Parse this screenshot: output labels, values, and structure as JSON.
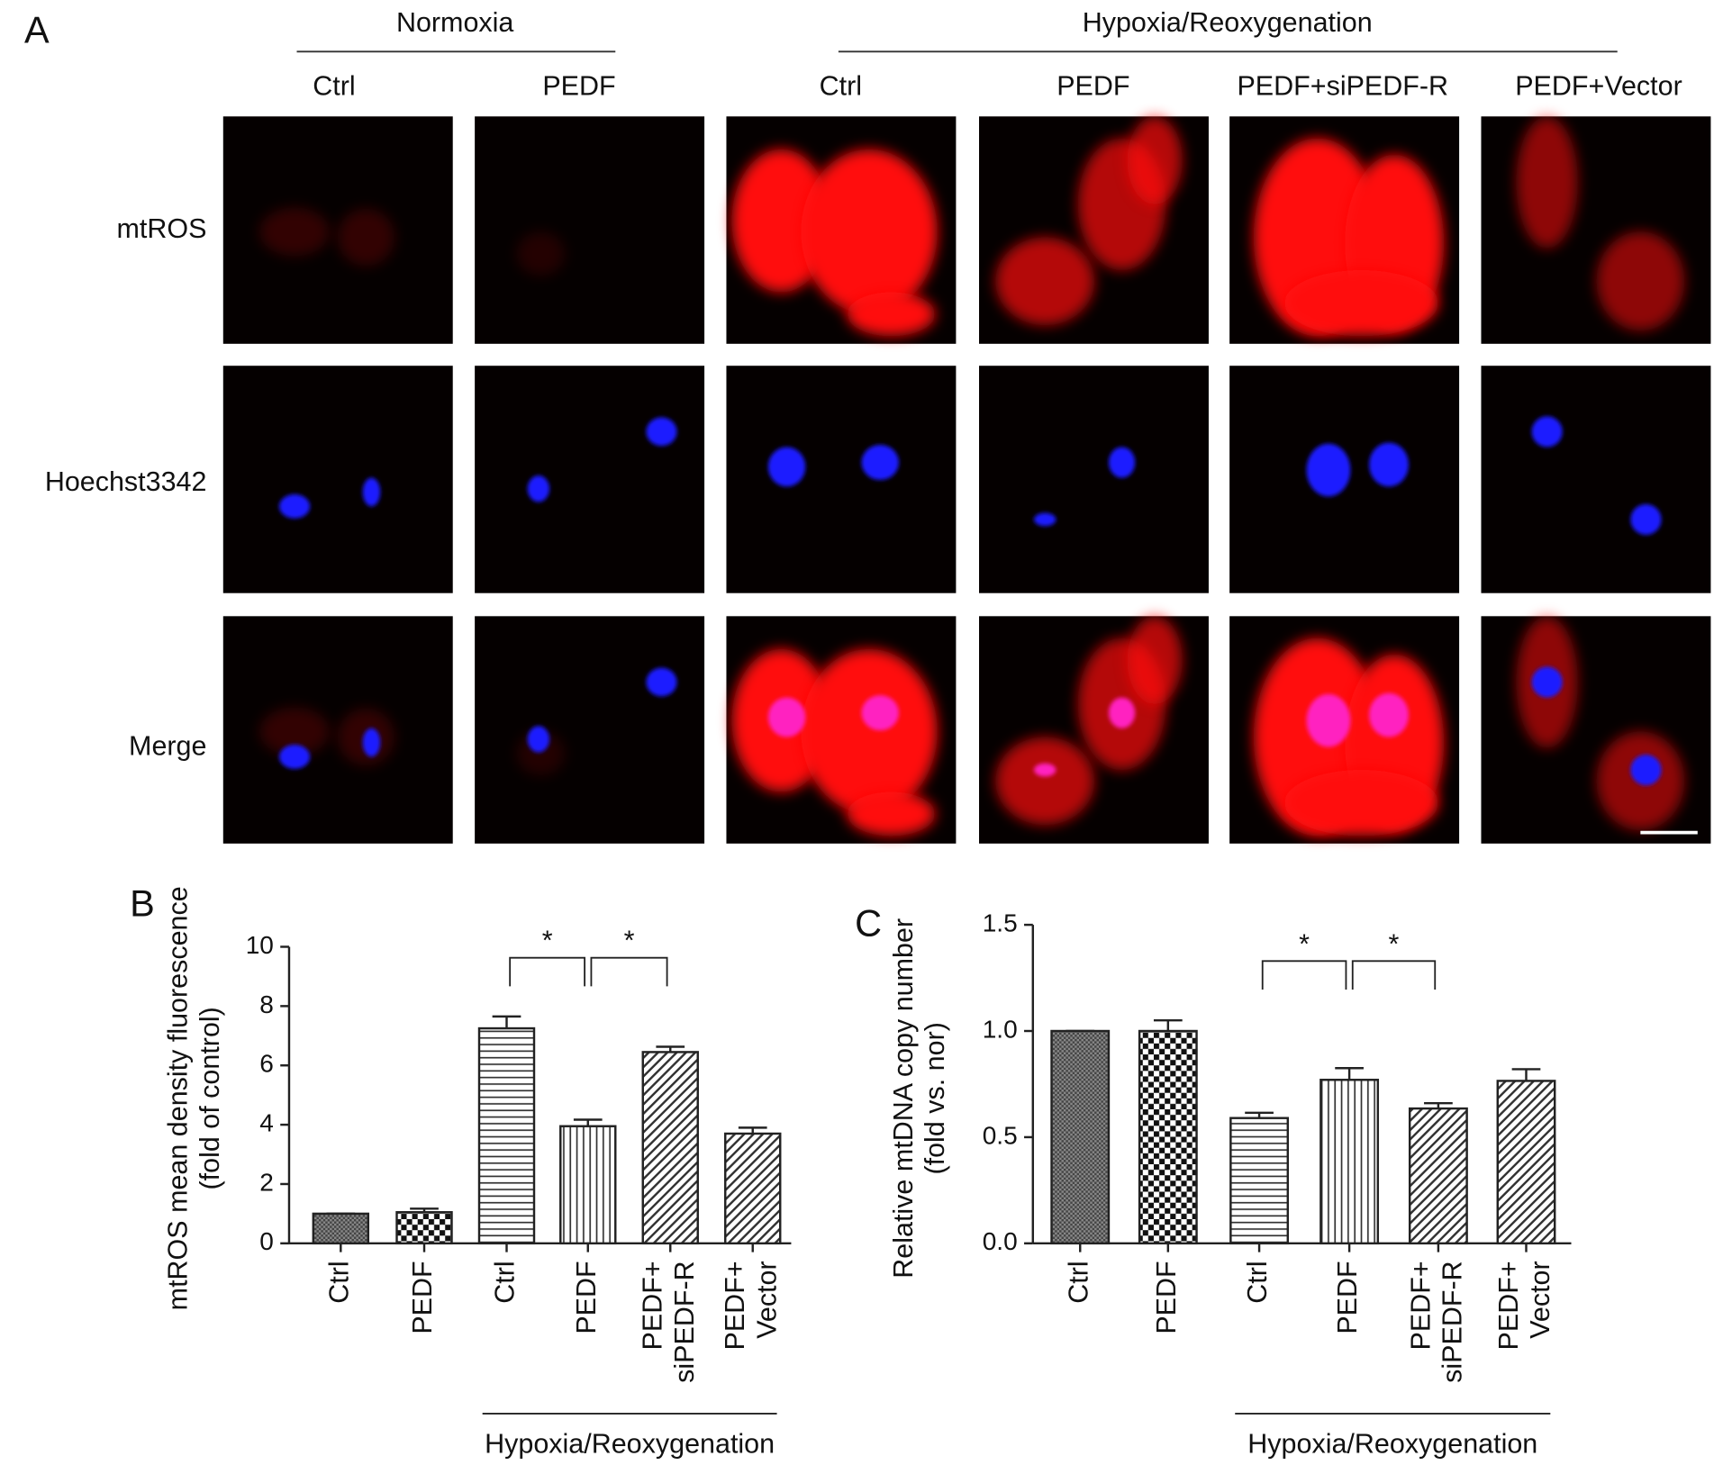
{
  "panel_a": {
    "label": "A",
    "groups": [
      {
        "title": "Normoxia",
        "columns": [
          "Ctrl",
          "PEDF"
        ]
      },
      {
        "title": "Hypoxia/Reoxygenation",
        "columns": [
          "Ctrl",
          "PEDF",
          "PEDF+siPEDF-R",
          "PEDF+Vector"
        ]
      }
    ],
    "rows": [
      "mtROS",
      "Hoechst3342",
      "Merge"
    ]
  },
  "chart_data": [
    {
      "type": "bar",
      "panel_label": "B",
      "y_label": "mtROS mean density fluorescence\n(fold of control)",
      "categories": [
        "Ctrl",
        "PEDF",
        "Ctrl",
        "PEDF",
        "PEDF+\nsiPEDF-R",
        "PEDF+\nVector"
      ],
      "values": [
        1.0,
        1.05,
        7.25,
        3.95,
        6.45,
        3.7
      ],
      "errors": [
        0,
        0.12,
        0.4,
        0.22,
        0.18,
        0.2
      ],
      "hatches": [
        "dense",
        "checker",
        "horizontal",
        "vertical",
        "diagonal",
        "diagonal"
      ],
      "ylim": [
        0,
        10
      ],
      "yticks": [
        0,
        2,
        4,
        6,
        8,
        10
      ],
      "group_label": {
        "text": "Hypoxia/Reoxygenation",
        "from": 2,
        "to": 5
      },
      "annotations": [
        {
          "text": "*",
          "from": 2,
          "to": 3
        },
        {
          "text": "*",
          "from": 3,
          "to": 4
        }
      ]
    },
    {
      "type": "bar",
      "panel_label": "C",
      "y_label": "Relative mtDNA copy number\n(fold vs. nor)",
      "categories": [
        "Ctrl",
        "PEDF",
        "Ctrl",
        "PEDF",
        "PEDF+\nsiPEDF-R",
        "PEDF+\nVector"
      ],
      "values": [
        1.0,
        1.0,
        0.59,
        0.77,
        0.635,
        0.765
      ],
      "errors": [
        0,
        0.05,
        0.025,
        0.055,
        0.025,
        0.055
      ],
      "hatches": [
        "dense",
        "checker",
        "horizontal",
        "vertical",
        "diagonal",
        "diagonal"
      ],
      "ylim": [
        0,
        1.5
      ],
      "yticks": [
        {
          "value": 0,
          "label": "0.0"
        },
        {
          "value": 0.5,
          "label": "0.5"
        },
        {
          "value": 1,
          "label": "1.0"
        },
        {
          "value": 1.5,
          "label": "1.5"
        }
      ],
      "group_label": {
        "text": "Hypoxia/Reoxygenation",
        "from": 2,
        "to": 5
      },
      "annotations": [
        {
          "text": "*",
          "from": 2,
          "to": 3
        },
        {
          "text": "*",
          "from": 3,
          "to": 4
        }
      ]
    }
  ]
}
